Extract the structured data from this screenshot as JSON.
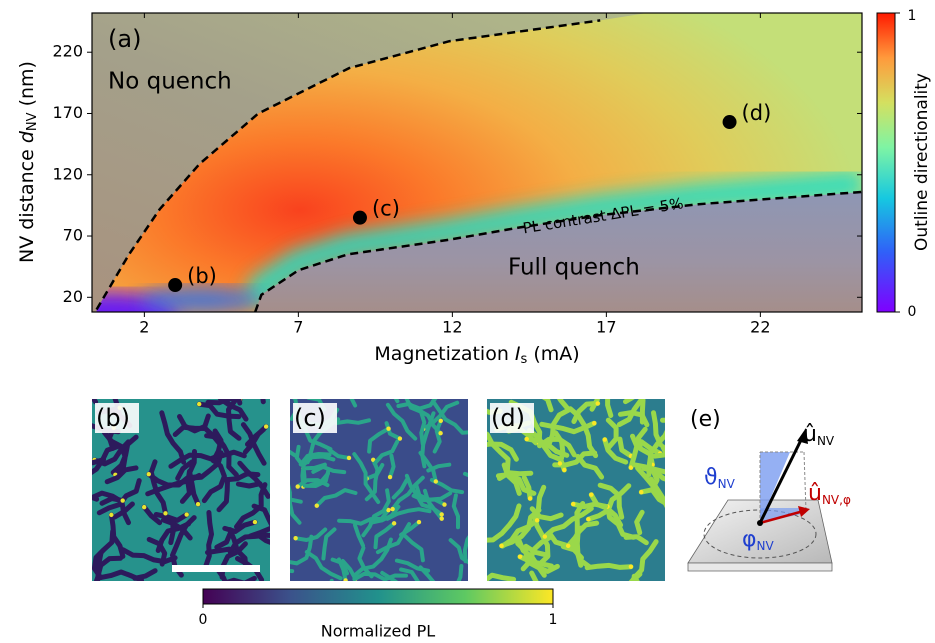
{
  "chart_data": [
    {
      "type": "scatter",
      "title": "(a)",
      "xlabel": [
        "Magnetization ",
        "I",
        "s",
        " (mA)"
      ],
      "ylabel": [
        "NV distance ",
        "d",
        "NV",
        " (nm)"
      ],
      "xlim": [
        0.3,
        25.3
      ],
      "ylim": [
        8,
        252
      ],
      "xticks": [
        2,
        7,
        12,
        17,
        22
      ],
      "yticks": [
        20,
        70,
        120,
        170,
        220
      ],
      "points": {
        "x": [
          3,
          9,
          21
        ],
        "y": [
          30,
          85,
          163
        ],
        "labels": [
          "(b)",
          "(c)",
          "(d)"
        ],
        "color": "#000000"
      },
      "curves": [
        {
          "x": [
            0.45,
            1.5,
            2.5,
            3.8,
            5.7,
            8.65,
            11.9,
            16.8
          ],
          "y": [
            10,
            55,
            92,
            129,
            170,
            207,
            229,
            246
          ]
        },
        {
          "x": [
            5.6,
            5.8,
            7,
            8.6,
            11.9,
            14.2,
            16.8,
            20,
            25.3
          ],
          "y": [
            8,
            22,
            42,
            55,
            67,
            77,
            87,
            96,
            106
          ]
        }
      ],
      "annotations": [
        "No quench",
        "Full quench",
        "PL contrast ΔPL = 5%"
      ],
      "colorbar": {
        "label": "Outline directionality",
        "lim": [
          0,
          1
        ],
        "ticks": [
          0,
          1
        ]
      }
    },
    {
      "type": "image",
      "panels": [
        "(b)",
        "(c)",
        "(d)"
      ],
      "colorbar": {
        "label": "Normalized PL",
        "lim": [
          0,
          1
        ],
        "ticks": [
          0,
          1
        ]
      }
    }
  ],
  "panel_e": {
    "label": "(e)",
    "u_nv": [
      "û",
      "NV"
    ],
    "theta": [
      "ϑ",
      "NV"
    ],
    "u_phi": [
      "û",
      "NV,φ"
    ],
    "phi": [
      "φ",
      "NV"
    ]
  }
}
